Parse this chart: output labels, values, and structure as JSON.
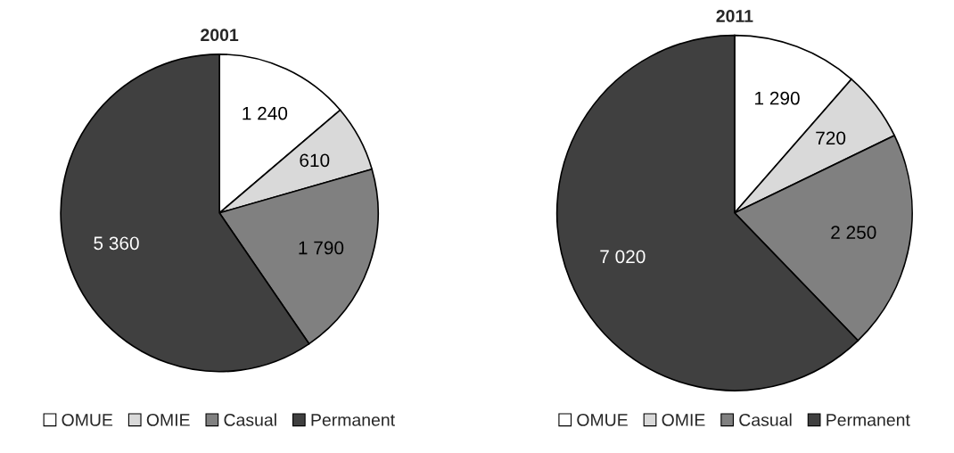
{
  "chart_data": [
    {
      "type": "pie",
      "title": "2001",
      "categories": [
        "OMUE",
        "OMIE",
        "Casual",
        "Permanent"
      ],
      "values": [
        1240,
        610,
        1790,
        5360
      ],
      "value_labels": [
        "1 240",
        "610",
        "1 790",
        "5 360"
      ],
      "colors": [
        "#ffffff",
        "#d9d9d9",
        "#808080",
        "#404040"
      ],
      "legend": "bottom"
    },
    {
      "type": "pie",
      "title": "2011",
      "categories": [
        "OMUE",
        "OMIE",
        "Casual",
        "Permanent"
      ],
      "values": [
        1290,
        720,
        2250,
        7020
      ],
      "value_labels": [
        "1 290",
        "720",
        "2 250",
        "7 020"
      ],
      "colors": [
        "#ffffff",
        "#d9d9d9",
        "#808080",
        "#404040"
      ],
      "legend": "bottom"
    }
  ]
}
